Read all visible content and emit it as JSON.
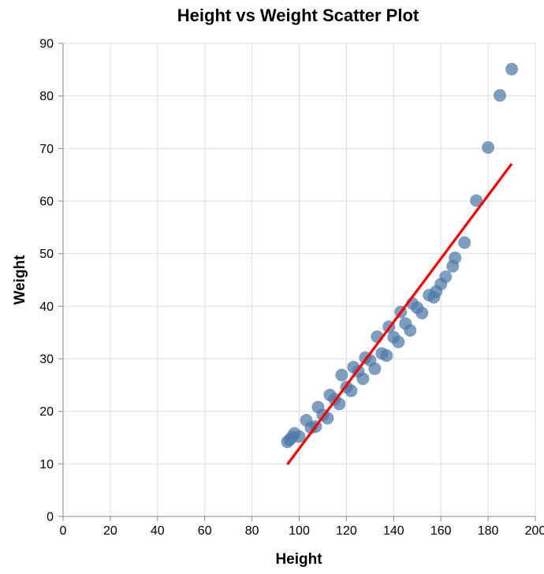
{
  "chart_data": {
    "type": "scatter",
    "title": "Height vs Weight Scatter Plot",
    "xlabel": "Height",
    "ylabel": "Weight",
    "xlim": [
      0,
      200
    ],
    "ylim": [
      0,
      90
    ],
    "x_ticks": [
      0,
      20,
      40,
      60,
      80,
      100,
      120,
      140,
      160,
      180,
      200
    ],
    "y_ticks": [
      0,
      10,
      20,
      30,
      40,
      50,
      60,
      70,
      80,
      90
    ],
    "grid": true,
    "point_color": "#4c78a8",
    "points": [
      {
        "x": 95,
        "y": 14.2
      },
      {
        "x": 96,
        "y": 14.6
      },
      {
        "x": 97,
        "y": 15.1
      },
      {
        "x": 98,
        "y": 15.8
      },
      {
        "x": 100,
        "y": 15.2
      },
      {
        "x": 103,
        "y": 18.3
      },
      {
        "x": 105,
        "y": 16.9
      },
      {
        "x": 107,
        "y": 17.1
      },
      {
        "x": 108,
        "y": 20.8
      },
      {
        "x": 110,
        "y": 19.3
      },
      {
        "x": 112,
        "y": 18.7
      },
      {
        "x": 113,
        "y": 23.1
      },
      {
        "x": 115,
        "y": 22.3
      },
      {
        "x": 117,
        "y": 21.4
      },
      {
        "x": 118,
        "y": 26.9
      },
      {
        "x": 120,
        "y": 24.6
      },
      {
        "x": 122,
        "y": 23.9
      },
      {
        "x": 123,
        "y": 28.4
      },
      {
        "x": 125,
        "y": 27.6
      },
      {
        "x": 127,
        "y": 26.2
      },
      {
        "x": 128,
        "y": 30.2
      },
      {
        "x": 130,
        "y": 29.7
      },
      {
        "x": 132,
        "y": 28.1
      },
      {
        "x": 133,
        "y": 34.2
      },
      {
        "x": 135,
        "y": 31.0
      },
      {
        "x": 137,
        "y": 30.6
      },
      {
        "x": 138,
        "y": 36.1
      },
      {
        "x": 140,
        "y": 34.1
      },
      {
        "x": 142,
        "y": 33.2
      },
      {
        "x": 143,
        "y": 38.9
      },
      {
        "x": 145,
        "y": 36.7
      },
      {
        "x": 147,
        "y": 35.4
      },
      {
        "x": 148,
        "y": 40.5
      },
      {
        "x": 150,
        "y": 39.7
      },
      {
        "x": 152,
        "y": 38.7
      },
      {
        "x": 155,
        "y": 42.1
      },
      {
        "x": 157,
        "y": 41.7
      },
      {
        "x": 158,
        "y": 42.8
      },
      {
        "x": 160,
        "y": 44.2
      },
      {
        "x": 162,
        "y": 45.6
      },
      {
        "x": 165,
        "y": 47.6
      },
      {
        "x": 166,
        "y": 49.2
      },
      {
        "x": 170,
        "y": 52.1
      },
      {
        "x": 175,
        "y": 60.1
      },
      {
        "x": 180,
        "y": 70.2
      },
      {
        "x": 185,
        "y": 80.1
      },
      {
        "x": 190,
        "y": 85.1
      }
    ],
    "trend_line": {
      "color": "#ff0000",
      "x": [
        95,
        190
      ],
      "y": [
        9.9,
        67.1
      ]
    }
  }
}
